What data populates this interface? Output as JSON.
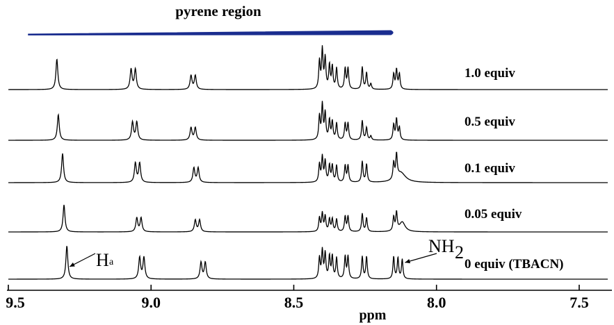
{
  "chart_data": {
    "type": "line",
    "xlabel": "ppm",
    "ylabel": "",
    "xlim": [
      9.5,
      7.4
    ],
    "x_reversed": true,
    "xticks": [
      9.5,
      9.0,
      8.5,
      8.0,
      7.5
    ],
    "xtick_labels": [
      "9.5",
      "9.0",
      "8.5",
      "8.0",
      "7.5"
    ],
    "grid": false,
    "legend": "none",
    "line_color": "#000000",
    "region_bar": {
      "label": "pyrene region",
      "from": 9.43,
      "to": 8.15,
      "color": "#1a2d8f"
    },
    "annotations": [
      {
        "text": "H",
        "subscript": "a",
        "target_ppm": 9.3,
        "series": "0 equiv (TBACN)"
      },
      {
        "text": "NH",
        "subscript": "2",
        "target_ppm": 8.12,
        "series": "0 equiv (TBACN)"
      }
    ],
    "series": [
      {
        "name": "1.0 equiv",
        "peaks": [
          {
            "ppm": 9.33,
            "h": 44,
            "w": 0.004
          },
          {
            "ppm": 9.07,
            "h": 29,
            "w": 0.004
          },
          {
            "ppm": 9.055,
            "h": 29,
            "w": 0.004
          },
          {
            "ppm": 8.86,
            "h": 20,
            "w": 0.004
          },
          {
            "ppm": 8.845,
            "h": 20,
            "w": 0.004
          },
          {
            "ppm": 8.41,
            "h": 40,
            "w": 0.003
          },
          {
            "ppm": 8.4,
            "h": 56,
            "w": 0.003
          },
          {
            "ppm": 8.39,
            "h": 44,
            "w": 0.003
          },
          {
            "ppm": 8.375,
            "h": 34,
            "w": 0.003
          },
          {
            "ppm": 8.365,
            "h": 32,
            "w": 0.003
          },
          {
            "ppm": 8.35,
            "h": 30,
            "w": 0.003
          },
          {
            "ppm": 8.32,
            "h": 30,
            "w": 0.003
          },
          {
            "ppm": 8.31,
            "h": 30,
            "w": 0.003
          },
          {
            "ppm": 8.26,
            "h": 32,
            "w": 0.003
          },
          {
            "ppm": 8.245,
            "h": 24,
            "w": 0.003
          },
          {
            "ppm": 8.23,
            "h": 8,
            "w": 0.003
          },
          {
            "ppm": 8.15,
            "h": 22,
            "w": 0.003
          },
          {
            "ppm": 8.14,
            "h": 28,
            "w": 0.003
          },
          {
            "ppm": 8.13,
            "h": 22,
            "w": 0.003
          }
        ]
      },
      {
        "name": "0.5 equiv",
        "peaks": [
          {
            "ppm": 9.325,
            "h": 37,
            "w": 0.004
          },
          {
            "ppm": 9.065,
            "h": 26,
            "w": 0.004
          },
          {
            "ppm": 9.05,
            "h": 26,
            "w": 0.004
          },
          {
            "ppm": 8.86,
            "h": 18,
            "w": 0.004
          },
          {
            "ppm": 8.845,
            "h": 18,
            "w": 0.004
          },
          {
            "ppm": 8.41,
            "h": 34,
            "w": 0.003
          },
          {
            "ppm": 8.4,
            "h": 50,
            "w": 0.003
          },
          {
            "ppm": 8.39,
            "h": 38,
            "w": 0.003
          },
          {
            "ppm": 8.375,
            "h": 28,
            "w": 0.003
          },
          {
            "ppm": 8.365,
            "h": 26,
            "w": 0.003
          },
          {
            "ppm": 8.35,
            "h": 24,
            "w": 0.003
          },
          {
            "ppm": 8.32,
            "h": 24,
            "w": 0.003
          },
          {
            "ppm": 8.31,
            "h": 24,
            "w": 0.003
          },
          {
            "ppm": 8.26,
            "h": 28,
            "w": 0.003
          },
          {
            "ppm": 8.245,
            "h": 18,
            "w": 0.003
          },
          {
            "ppm": 8.23,
            "h": 6,
            "w": 0.003
          },
          {
            "ppm": 8.15,
            "h": 22,
            "w": 0.003
          },
          {
            "ppm": 8.14,
            "h": 30,
            "w": 0.003
          },
          {
            "ppm": 8.13,
            "h": 18,
            "w": 0.003
          }
        ]
      },
      {
        "name": "0.1 equiv",
        "peaks": [
          {
            "ppm": 9.31,
            "h": 42,
            "w": 0.004
          },
          {
            "ppm": 9.055,
            "h": 28,
            "w": 0.004
          },
          {
            "ppm": 9.04,
            "h": 28,
            "w": 0.004
          },
          {
            "ppm": 8.85,
            "h": 21,
            "w": 0.004
          },
          {
            "ppm": 8.835,
            "h": 21,
            "w": 0.004
          },
          {
            "ppm": 8.41,
            "h": 26,
            "w": 0.003
          },
          {
            "ppm": 8.4,
            "h": 36,
            "w": 0.003
          },
          {
            "ppm": 8.39,
            "h": 30,
            "w": 0.003
          },
          {
            "ppm": 8.375,
            "h": 24,
            "w": 0.003
          },
          {
            "ppm": 8.365,
            "h": 24,
            "w": 0.003
          },
          {
            "ppm": 8.35,
            "h": 24,
            "w": 0.003
          },
          {
            "ppm": 8.32,
            "h": 24,
            "w": 0.003
          },
          {
            "ppm": 8.31,
            "h": 24,
            "w": 0.003
          },
          {
            "ppm": 8.26,
            "h": 30,
            "w": 0.003
          },
          {
            "ppm": 8.245,
            "h": 26,
            "w": 0.003
          },
          {
            "ppm": 8.15,
            "h": 24,
            "w": 0.003
          },
          {
            "ppm": 8.14,
            "h": 34,
            "w": 0.003
          },
          {
            "ppm": 8.125,
            "h": 14,
            "w": 0.02
          }
        ]
      },
      {
        "name": "0.05 equiv",
        "peaks": [
          {
            "ppm": 9.305,
            "h": 39,
            "w": 0.004
          },
          {
            "ppm": 9.05,
            "h": 20,
            "w": 0.004
          },
          {
            "ppm": 9.035,
            "h": 20,
            "w": 0.004
          },
          {
            "ppm": 8.845,
            "h": 17,
            "w": 0.004
          },
          {
            "ppm": 8.83,
            "h": 17,
            "w": 0.004
          },
          {
            "ppm": 8.41,
            "h": 20,
            "w": 0.003
          },
          {
            "ppm": 8.4,
            "h": 26,
            "w": 0.003
          },
          {
            "ppm": 8.39,
            "h": 22,
            "w": 0.003
          },
          {
            "ppm": 8.375,
            "h": 18,
            "w": 0.003
          },
          {
            "ppm": 8.365,
            "h": 18,
            "w": 0.003
          },
          {
            "ppm": 8.35,
            "h": 18,
            "w": 0.003
          },
          {
            "ppm": 8.32,
            "h": 22,
            "w": 0.003
          },
          {
            "ppm": 8.31,
            "h": 22,
            "w": 0.003
          },
          {
            "ppm": 8.26,
            "h": 26,
            "w": 0.003
          },
          {
            "ppm": 8.245,
            "h": 20,
            "w": 0.003
          },
          {
            "ppm": 8.15,
            "h": 20,
            "w": 0.003
          },
          {
            "ppm": 8.14,
            "h": 26,
            "w": 0.003
          },
          {
            "ppm": 8.12,
            "h": 14,
            "w": 0.012
          }
        ]
      },
      {
        "name": "0 equiv (TBACN)",
        "peaks": [
          {
            "ppm": 9.295,
            "h": 48,
            "w": 0.004
          },
          {
            "ppm": 9.04,
            "h": 31,
            "w": 0.004
          },
          {
            "ppm": 9.025,
            "h": 31,
            "w": 0.004
          },
          {
            "ppm": 8.825,
            "h": 24,
            "w": 0.004
          },
          {
            "ppm": 8.81,
            "h": 24,
            "w": 0.004
          },
          {
            "ppm": 8.41,
            "h": 30,
            "w": 0.003
          },
          {
            "ppm": 8.4,
            "h": 40,
            "w": 0.003
          },
          {
            "ppm": 8.39,
            "h": 36,
            "w": 0.003
          },
          {
            "ppm": 8.375,
            "h": 32,
            "w": 0.003
          },
          {
            "ppm": 8.365,
            "h": 32,
            "w": 0.003
          },
          {
            "ppm": 8.35,
            "h": 30,
            "w": 0.003
          },
          {
            "ppm": 8.32,
            "h": 32,
            "w": 0.003
          },
          {
            "ppm": 8.31,
            "h": 32,
            "w": 0.003
          },
          {
            "ppm": 8.26,
            "h": 32,
            "w": 0.003
          },
          {
            "ppm": 8.245,
            "h": 32,
            "w": 0.003
          },
          {
            "ppm": 8.15,
            "h": 32,
            "w": 0.003
          },
          {
            "ppm": 8.135,
            "h": 30,
            "w": 0.003
          },
          {
            "ppm": 8.12,
            "h": 28,
            "w": 0.003
          }
        ]
      }
    ]
  }
}
